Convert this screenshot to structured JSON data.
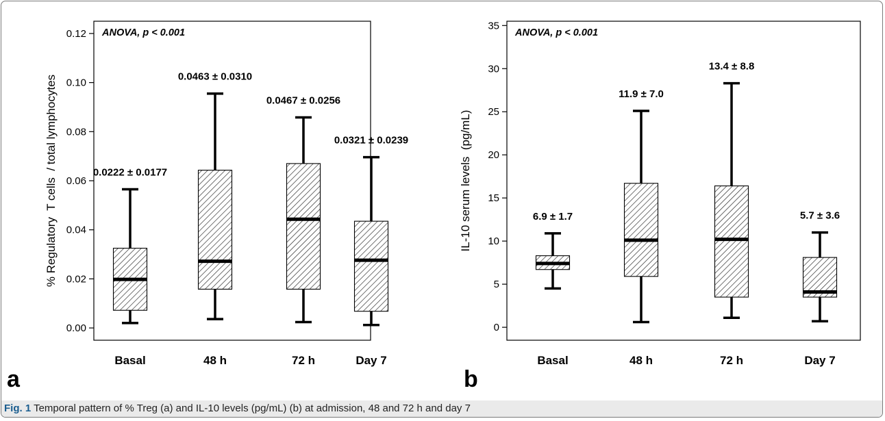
{
  "caption": {
    "label": "Fig. 1",
    "text": "Temporal pattern of % Treg (a) and IL-10 levels (pg/mL) (b) at admission, 48 and 72 h and day 7"
  },
  "colors": {
    "box_hatch": "#222222",
    "box_fill": "#ffffff",
    "axis": "#000000"
  },
  "chart_data": [
    {
      "type": "box",
      "panel_label": "a",
      "annotation": "ANOVA, p < 0.001",
      "ylabel": "% Regulatory  T cells  / total lymphocytes",
      "xlabel": "",
      "ylim": [
        -0.005,
        0.125
      ],
      "yticks": [
        "0.00",
        "0.02",
        "0.04",
        "0.06",
        "0.08",
        "0.10",
        "0.12"
      ],
      "categories": [
        "Basal",
        "48 h",
        "72 h",
        "Day 7"
      ],
      "boxes": [
        {
          "category": "Basal",
          "whisker_low": 0.002,
          "q1": 0.0072,
          "median": 0.0198,
          "q3": 0.0325,
          "whisker_high": 0.0565,
          "label": "0.0222 ± 0.0177"
        },
        {
          "category": "48 h",
          "whisker_low": 0.0036,
          "q1": 0.0158,
          "median": 0.0272,
          "q3": 0.0643,
          "whisker_high": 0.0955,
          "label": "0.0463 ± 0.0310"
        },
        {
          "category": "72 h",
          "whisker_low": 0.0024,
          "q1": 0.0158,
          "median": 0.0443,
          "q3": 0.067,
          "whisker_high": 0.0858,
          "label": "0.0467 ± 0.0256"
        },
        {
          "category": "Day 7",
          "whisker_low": 0.0012,
          "q1": 0.0068,
          "median": 0.0276,
          "q3": 0.0435,
          "whisker_high": 0.0696,
          "label": "0.0321 ± 0.0239"
        }
      ]
    },
    {
      "type": "box",
      "panel_label": "b",
      "annotation": "ANOVA, p < 0.001",
      "ylabel": "IL-10 serum levels  (pg/mL)",
      "xlabel": "",
      "ylim": [
        -1.5,
        35.5
      ],
      "yticks": [
        "0",
        "5",
        "10",
        "15",
        "20",
        "25",
        "30",
        "35"
      ],
      "categories": [
        "Basal",
        "48 h",
        "72 h",
        "Day 7"
      ],
      "boxes": [
        {
          "category": "Basal",
          "whisker_low": 4.5,
          "q1": 6.7,
          "median": 7.4,
          "q3": 8.3,
          "whisker_high": 10.9,
          "label": "6.9 ± 1.7"
        },
        {
          "category": "48 h",
          "whisker_low": 0.6,
          "q1": 5.9,
          "median": 10.1,
          "q3": 16.7,
          "whisker_high": 25.1,
          "label": "11.9 ± 7.0"
        },
        {
          "category": "72 h",
          "whisker_low": 1.1,
          "q1": 3.5,
          "median": 10.2,
          "q3": 16.4,
          "whisker_high": 28.3,
          "label": "13.4 ± 8.8"
        },
        {
          "category": "Day 7",
          "whisker_low": 0.7,
          "q1": 3.5,
          "median": 4.1,
          "q3": 8.1,
          "whisker_high": 11.0,
          "label": "5.7 ± 3.6"
        }
      ]
    }
  ]
}
